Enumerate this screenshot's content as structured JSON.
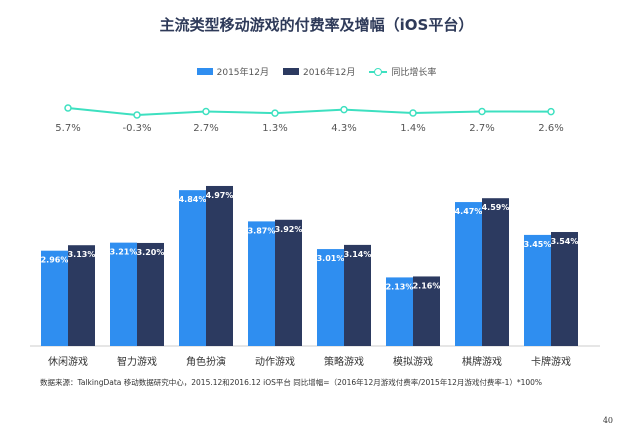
{
  "source_note": "数据来源：TalkingData 移动数据研究中心，2015.12和2016.12 iOS平台   同比增幅=（2016年12月游戏付费率/2015年12月游戏付费率-1）*100%",
  "page_number": "40",
  "colors": {
    "series_2015": "#2f8ef0",
    "series_2016": "#2c3a60",
    "growth_line": "#3de0c0",
    "title": "#2e3a59"
  },
  "chart_data": {
    "type": "bar",
    "title": "主流类型移动游戏的付费率及增幅（iOS平台）",
    "categories": [
      "休闲游戏",
      "智力游戏",
      "角色扮演",
      "动作游戏",
      "策略游戏",
      "模拟游戏",
      "棋牌游戏",
      "卡牌游戏"
    ],
    "series": [
      {
        "name": "2015年12月",
        "values": [
          2.96,
          3.21,
          4.84,
          3.87,
          3.01,
          2.13,
          4.47,
          3.45
        ],
        "labels": [
          "2.96%",
          "3.21%",
          "4.84%",
          "3.87%",
          "3.01%",
          "2.13%",
          "4.47%",
          "3.45%"
        ]
      },
      {
        "name": "2016年12月",
        "values": [
          3.13,
          3.2,
          4.97,
          3.92,
          3.14,
          2.16,
          4.59,
          3.54
        ],
        "labels": [
          "3.13%",
          "3.20%",
          "4.97%",
          "3.92%",
          "3.14%",
          "2.16%",
          "4.59%",
          "3.54%"
        ]
      }
    ],
    "line_series": {
      "name": "同比增长率",
      "values": [
        5.7,
        -0.3,
        2.7,
        1.3,
        4.3,
        1.4,
        2.7,
        2.6
      ],
      "labels": [
        "5.7%",
        "-0.3%",
        "2.7%",
        "1.3%",
        "4.3%",
        "1.4%",
        "2.7%",
        "2.6%"
      ]
    },
    "ylim": [
      0,
      5.5
    ],
    "legend_position": "top-center",
    "grid": false
  }
}
